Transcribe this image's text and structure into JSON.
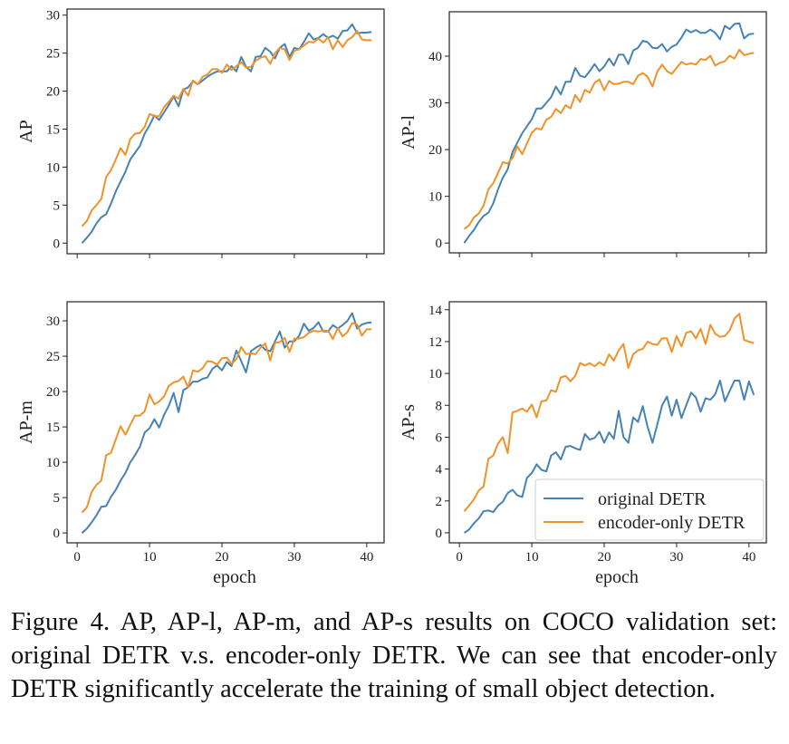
{
  "chart_data": [
    {
      "type": "line",
      "ylabel": "AP",
      "xlabel": "",
      "show_xtick_labels": false,
      "xlim": [
        -1.4,
        42.4
      ],
      "ylim": [
        -1.4,
        30.8
      ],
      "yticks": [
        0,
        5,
        10,
        15,
        20,
        25,
        30
      ],
      "xticks": [
        0,
        10,
        20,
        30,
        40
      ],
      "grid": false,
      "series": [
        {
          "name": "original DETR",
          "color": "#4682b4",
          "values": [
            0,
            0.7,
            1.5,
            2.6,
            3.4,
            3.8,
            5.2,
            6.8,
            8.1,
            9.4,
            11.0,
            11.9,
            12.8,
            14.4,
            15.5,
            16.8,
            16.2,
            17.2,
            18.2,
            19.3,
            18.0,
            20.2,
            20.5,
            21.3,
            20.9,
            21.4,
            21.9,
            22.3,
            22.6,
            22.6,
            22.6,
            23.3,
            22.6,
            24.5,
            23.2,
            22.6,
            24.5,
            24.6,
            25.7,
            25.2,
            24.3,
            25.7,
            26.2,
            24.5,
            25.7,
            25.5,
            26.5,
            27.6,
            26.8,
            27.0,
            27.5,
            27.0,
            27.3,
            26.9,
            27.9,
            28.0,
            28.8,
            27.6,
            27.7,
            27.7,
            27.8
          ]
        },
        {
          "name": "encoder-only DETR",
          "color": "#f0922a",
          "values": [
            2.2,
            2.9,
            4.3,
            5.0,
            5.8,
            8.7,
            9.6,
            11.0,
            12.5,
            11.6,
            13.7,
            14.4,
            14.5,
            15.3,
            17.0,
            16.7,
            16.7,
            17.9,
            18.6,
            19.4,
            19.0,
            20.3,
            19.4,
            21.4,
            20.9,
            21.9,
            22.2,
            22.9,
            22.9,
            22.4,
            23.5,
            22.8,
            23.3,
            23.8,
            23.1,
            23.2,
            24.0,
            24.4,
            24.6,
            23.6,
            25.0,
            25.7,
            25.5,
            24.1,
            25.3,
            25.5,
            26.0,
            26.5,
            26.4,
            26.9,
            26.4,
            27.1,
            25.5,
            26.7,
            25.8,
            26.7,
            27.1,
            27.9,
            26.8,
            26.7,
            26.7
          ]
        }
      ]
    },
    {
      "type": "line",
      "ylabel": "AP-l",
      "xlabel": "",
      "show_xtick_labels": false,
      "xlim": [
        -1.4,
        42.4
      ],
      "ylim": [
        -2.1,
        49.5
      ],
      "yticks": [
        0,
        10,
        20,
        30,
        40
      ],
      "xticks": [
        0,
        10,
        20,
        30,
        40
      ],
      "grid": false,
      "series": [
        {
          "name": "original DETR",
          "color": "#4682b4",
          "values": [
            0,
            1.5,
            2.8,
            4.5,
            5.8,
            6.5,
            8.5,
            11.5,
            14.0,
            15.8,
            19.5,
            21.5,
            23.5,
            25.0,
            26.5,
            28.8,
            28.8,
            30.0,
            31.2,
            33.5,
            31.8,
            34.5,
            34.5,
            37.5,
            35.8,
            35.5,
            36.8,
            38.3,
            36.8,
            37.8,
            39.5,
            38.0,
            40.3,
            40.3,
            38.3,
            41.2,
            41.8,
            43.3,
            43.0,
            41.8,
            41.7,
            42.6,
            41.0,
            42.0,
            42.5,
            44.0,
            45.7,
            45.1,
            45.6,
            45.0,
            45.0,
            45.7,
            45.0,
            43.6,
            46.5,
            45.8,
            46.9,
            47.0,
            43.8,
            44.7,
            44.8
          ]
        },
        {
          "name": "encoder-only DETR",
          "color": "#f0922a",
          "values": [
            3.0,
            3.8,
            5.5,
            6.3,
            8.0,
            11.5,
            12.8,
            15.0,
            17.3,
            17.0,
            18.2,
            20.7,
            19.0,
            21.3,
            23.6,
            24.6,
            24.3,
            26.4,
            27.0,
            28.7,
            27.8,
            29.5,
            28.8,
            31.7,
            30.2,
            32.8,
            32.2,
            34.3,
            35.0,
            32.7,
            34.7,
            34.0,
            34.1,
            34.5,
            34.5,
            34.0,
            35.8,
            36.4,
            35.6,
            33.5,
            36.7,
            38.2,
            36.8,
            36.2,
            37.5,
            38.8,
            38.2,
            38.5,
            38.2,
            39.4,
            39.2,
            40.1,
            38.0,
            38.6,
            38.9,
            40.1,
            39.5,
            41.4,
            40.2,
            40.5,
            40.7
          ]
        }
      ]
    },
    {
      "type": "line",
      "ylabel": "AP-m",
      "xlabel": "epoch",
      "show_xtick_labels": true,
      "xlim": [
        -1.4,
        42.4
      ],
      "ylim": [
        -1.4,
        32.7
      ],
      "yticks": [
        0,
        5,
        10,
        15,
        20,
        25,
        30
      ],
      "xticks": [
        0,
        10,
        20,
        30,
        40
      ],
      "grid": false,
      "series": [
        {
          "name": "original DETR",
          "color": "#4682b4",
          "values": [
            0,
            0.6,
            1.5,
            2.5,
            3.7,
            3.8,
            5.1,
            6.1,
            7.4,
            8.5,
            10.0,
            11.0,
            12.2,
            14.2,
            14.8,
            16.1,
            14.9,
            16.7,
            18.0,
            19.8,
            17.1,
            20.2,
            20.6,
            21.4,
            21.4,
            21.8,
            22.0,
            23.2,
            23.7,
            23.0,
            24.2,
            23.6,
            25.8,
            24.3,
            22.7,
            25.7,
            26.2,
            26.6,
            25.9,
            25.7,
            27.1,
            28.5,
            26.2,
            27.1,
            27.1,
            27.9,
            29.6,
            28.6,
            29.0,
            29.8,
            28.5,
            28.5,
            29.4,
            28.9,
            29.4,
            30.0,
            31.1,
            28.9,
            29.5,
            29.7,
            29.8
          ]
        },
        {
          "name": "encoder-only DETR",
          "color": "#f0922a",
          "values": [
            2.9,
            3.6,
            5.8,
            6.8,
            7.4,
            11.0,
            11.3,
            13.2,
            15.1,
            13.9,
            15.3,
            16.6,
            16.6,
            17.2,
            19.6,
            18.2,
            18.6,
            19.3,
            20.8,
            21.3,
            21.5,
            22.1,
            20.6,
            23.0,
            22.8,
            23.3,
            24.3,
            24.2,
            23.8,
            24.7,
            24.8,
            23.9,
            24.6,
            26.3,
            25.3,
            25.4,
            25.3,
            26.2,
            26.8,
            24.4,
            26.9,
            27.0,
            27.6,
            25.6,
            27.5,
            27.5,
            27.7,
            28.3,
            28.6,
            28.5,
            28.6,
            28.6,
            27.4,
            29.0,
            27.8,
            28.4,
            29.7,
            29.5,
            27.9,
            28.8,
            28.8
          ]
        }
      ]
    },
    {
      "type": "line",
      "ylabel": "AP-s",
      "xlabel": "epoch",
      "show_xtick_labels": true,
      "xlim": [
        -1.4,
        42.4
      ],
      "ylim": [
        -0.63,
        14.5
      ],
      "yticks": [
        0,
        2,
        4,
        6,
        8,
        10,
        12,
        14
      ],
      "xticks": [
        0,
        10,
        20,
        30,
        40
      ],
      "grid": false,
      "legend": {
        "placement": "lower-right",
        "entries": [
          "original DETR",
          "encoder-only DETR"
        ]
      },
      "series": [
        {
          "name": "original DETR",
          "color": "#4682b4",
          "values": [
            0,
            0.2,
            0.6,
            0.9,
            1.35,
            1.4,
            1.3,
            1.7,
            1.95,
            2.5,
            2.7,
            2.35,
            2.25,
            3.45,
            3.75,
            4.3,
            3.95,
            3.85,
            4.85,
            5.05,
            4.6,
            5.4,
            5.45,
            5.3,
            5.2,
            6.2,
            5.85,
            5.95,
            6.35,
            5.65,
            6.3,
            5.9,
            7.65,
            6.0,
            5.65,
            7.25,
            6.95,
            7.95,
            6.65,
            5.65,
            6.8,
            8.0,
            8.55,
            7.35,
            8.35,
            7.2,
            8.0,
            8.8,
            8.5,
            7.6,
            8.45,
            8.35,
            8.7,
            9.55,
            8.25,
            8.9,
            9.55,
            9.55,
            8.35,
            9.5,
            8.65
          ]
        },
        {
          "name": "encoder-only DETR",
          "color": "#f0922a",
          "values": [
            1.35,
            1.7,
            2.1,
            2.65,
            2.9,
            4.65,
            4.85,
            5.6,
            6.0,
            5.0,
            7.55,
            7.65,
            7.8,
            7.6,
            8.05,
            7.25,
            8.25,
            8.3,
            8.95,
            8.85,
            9.75,
            9.85,
            9.5,
            9.85,
            10.65,
            10.5,
            10.65,
            10.45,
            10.7,
            10.5,
            11.2,
            10.8,
            11.45,
            11.85,
            10.35,
            11.2,
            11.45,
            11.55,
            12.0,
            11.85,
            11.8,
            12.2,
            12.2,
            11.35,
            12.35,
            11.7,
            12.55,
            12.65,
            12.2,
            12.8,
            11.85,
            13.05,
            12.5,
            12.3,
            12.35,
            12.7,
            13.45,
            13.75,
            12.1,
            12.0,
            11.9
          ]
        }
      ]
    }
  ],
  "x": [
    0.67,
    1.33,
    2,
    2.67,
    3.33,
    4,
    4.67,
    5.33,
    6,
    6.67,
    7.33,
    8,
    8.67,
    9.33,
    10,
    10.67,
    11.33,
    12,
    12.67,
    13.33,
    14,
    14.67,
    15.33,
    16,
    16.67,
    17.33,
    18,
    18.67,
    19.33,
    20,
    20.67,
    21.33,
    22,
    22.67,
    23.33,
    24,
    24.67,
    25.33,
    26,
    26.67,
    27.33,
    28,
    28.67,
    29.33,
    30,
    30.67,
    31.33,
    32,
    32.67,
    33.33,
    34,
    34.67,
    35.33,
    36,
    36.67,
    37.33,
    38,
    38.67,
    39.33,
    40,
    40.67
  ],
  "caption": "Figure 4. AP, AP-l, AP-m, and AP-s results on COCO validation set: original DETR v.s.  encoder-only DETR. We can see that encoder-only DETR significantly accelerate the training of small object detection."
}
